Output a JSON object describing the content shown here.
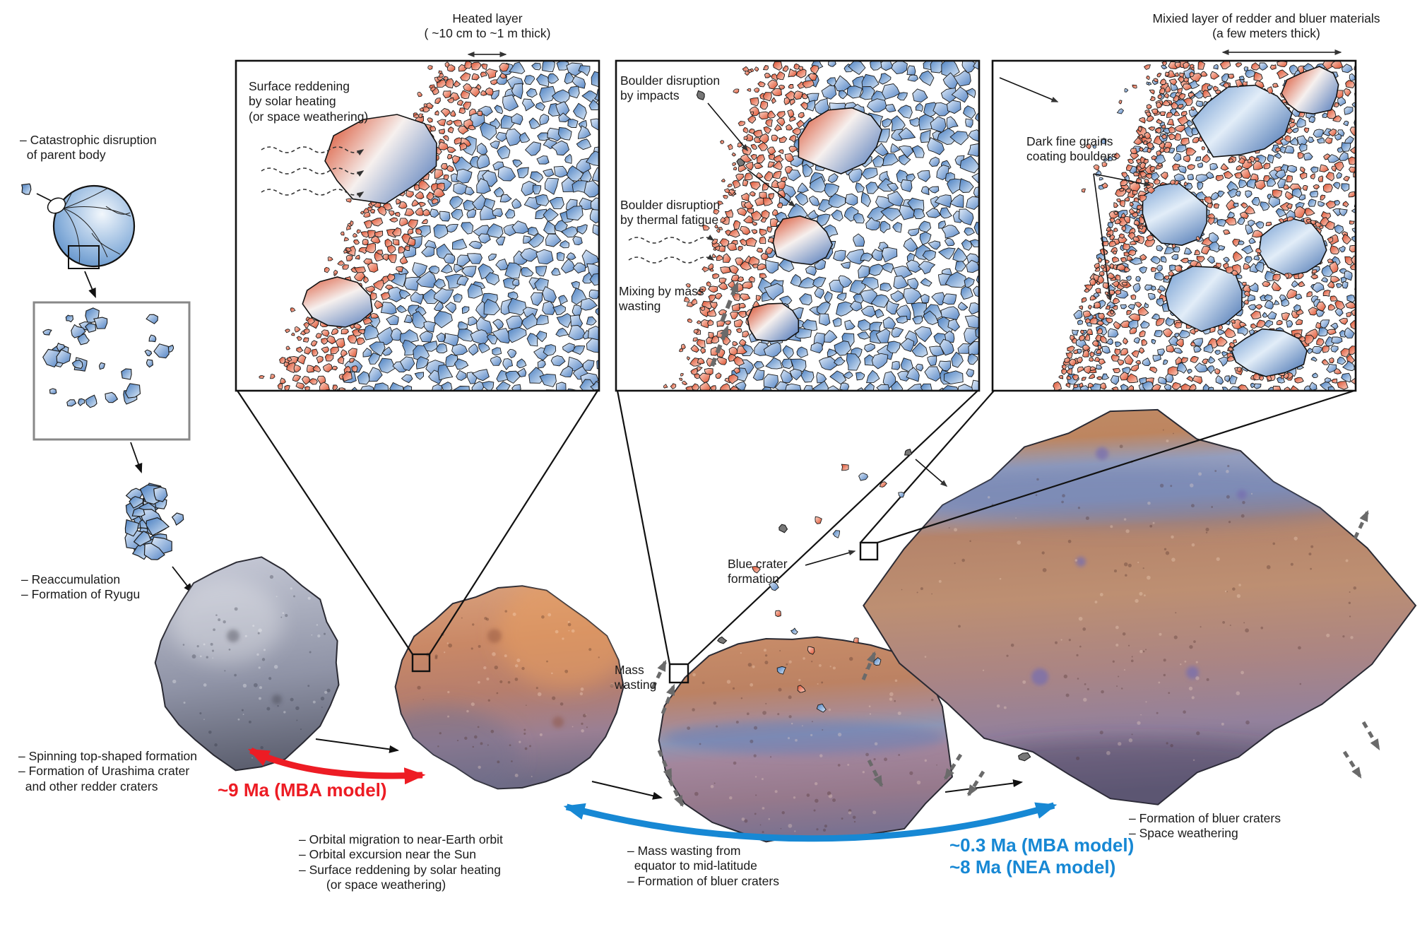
{
  "colors": {
    "red_accent": "#ed1c24",
    "blue_accent": "#1788d4",
    "rock_red": "#dd4f2e",
    "rock_blue": "#4a7fc1",
    "arrow_gray": "#6a6a6a"
  },
  "titles": {
    "heated": "Heated layer\n( ~10 cm to ~1 m thick)",
    "mixed": "Mixied layer of redder and bluer materials\n(a few meters thick)"
  },
  "panels": {
    "p1": {
      "surface": "Surface reddening\nby solar heating\n(or space weathering)"
    },
    "p2": {
      "impacts": "Boulder disruption\nby impacts",
      "thermal": "Boulder disruption\nby thermal fatigue",
      "mixing": "Mixing by mass\nwasting"
    },
    "p3": {
      "grains": "Dark fine grains\ncoating boulders"
    }
  },
  "stages": {
    "disruption": "– Catastrophic disruption\n  of parent body",
    "reaccumulation": "– Reaccumulation\n– Formation of Ryugu",
    "spinning": "– Spinning top-shaped formation\n– Formation of Urashima crater\n  and other redder craters",
    "orbital": "– Orbital migration to near-Earth orbit\n– Orbital excursion near the Sun\n– Surface reddening by solar heating\n        (or space weathering)",
    "mass_wasting_small": "Mass\nwasting",
    "mass_wasting": "– Mass wasting from\n  equator to mid-latitude\n– Formation of bluer craters",
    "blue_crater": "Blue crater\nformation",
    "bluer": "– Formation of bluer craters\n– Space weathering"
  },
  "timeline": {
    "mba9": "~9 Ma (MBA model)",
    "mba03": "~0.3 Ma (MBA model)",
    "nea8": "~8 Ma (NEA model)"
  }
}
